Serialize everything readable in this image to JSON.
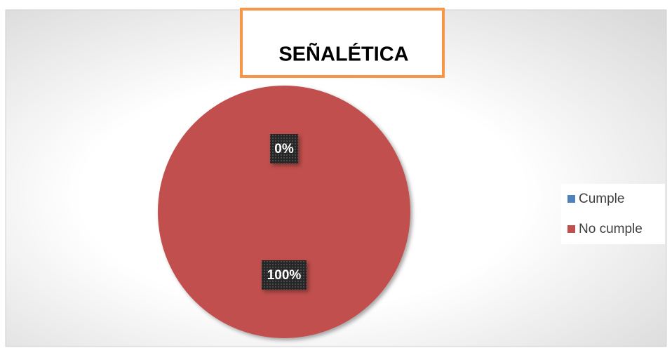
{
  "chart_data": {
    "type": "pie",
    "title": "SEÑALÉTICA",
    "categories": [
      "Cumple",
      "No cumple"
    ],
    "values": [
      0,
      100
    ],
    "value_labels": [
      "0%",
      "100%"
    ],
    "colors": [
      "#4f81bd",
      "#c0504d"
    ],
    "legend": "right"
  }
}
